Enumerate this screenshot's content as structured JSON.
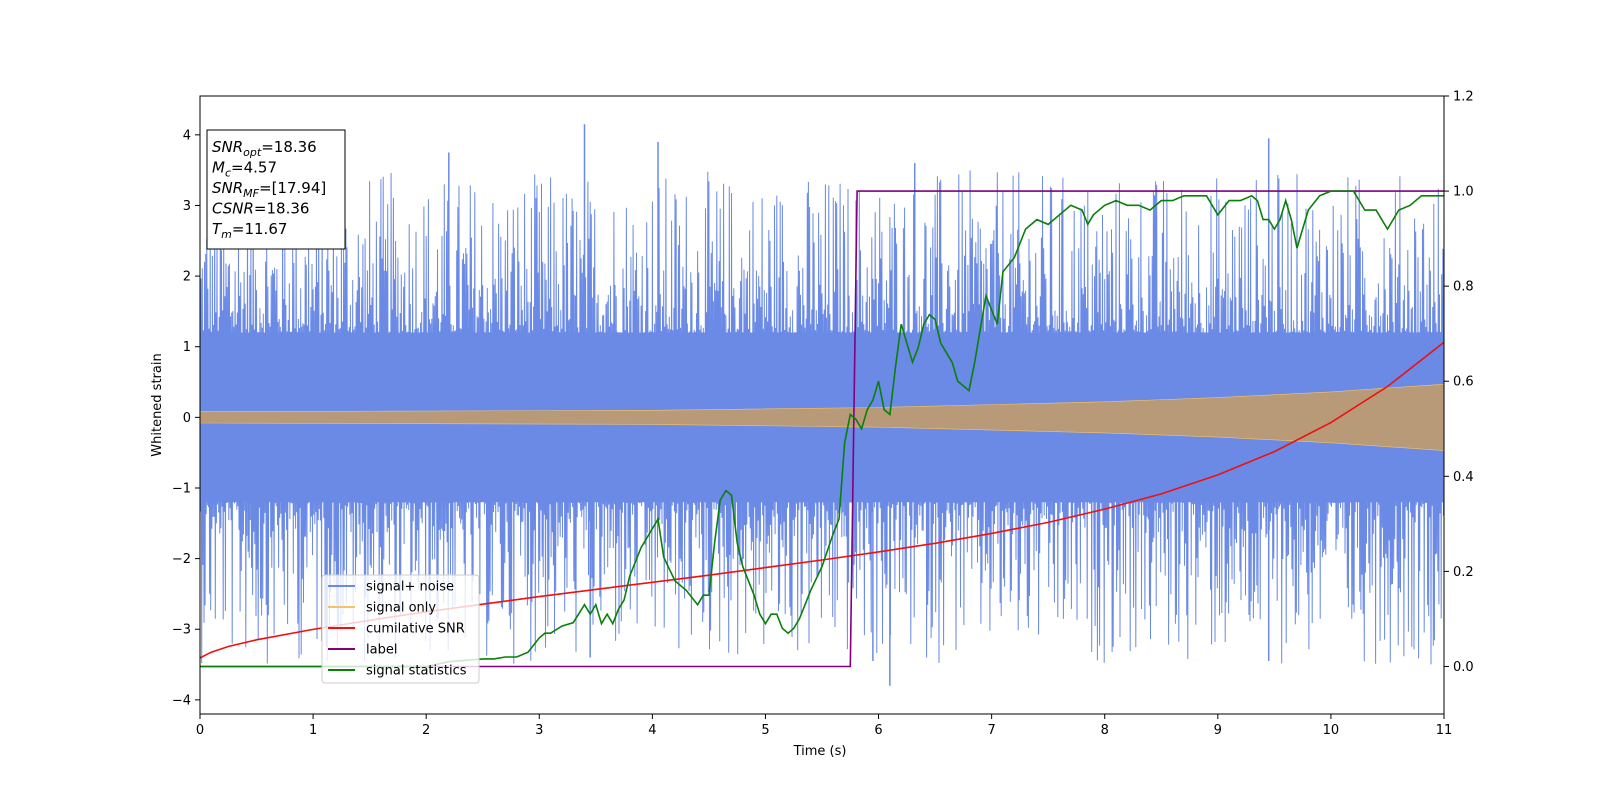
{
  "chart_data": {
    "type": "line",
    "title": "",
    "xlabel": "Time (s)",
    "ylabel": "Whitened strain",
    "y2label": "",
    "xlim": [
      0,
      11
    ],
    "ylim": [
      -4.2,
      4.55
    ],
    "y2lim": [
      -0.1,
      1.2
    ],
    "x_ticks": [
      0,
      1,
      2,
      3,
      4,
      5,
      6,
      7,
      8,
      9,
      10,
      11
    ],
    "y_ticks": [
      -4,
      -3,
      -2,
      -1,
      0,
      1,
      2,
      3,
      4
    ],
    "y2_ticks": [
      "0.0",
      "0.2",
      "0.4",
      "0.6",
      "0.8",
      "1.0",
      "1.2"
    ],
    "grid": false,
    "legend_position": "lower-left",
    "colors": {
      "signal_noise": "#6a8ae6",
      "signal_only": "#f5c36a",
      "signal_overlap": "#b89a78",
      "cumulative_snr": "#ee1111",
      "label": "#800080",
      "signal_statistics": "#0b7f0b"
    },
    "series": [
      {
        "name": "signal+ noise",
        "axis": "left",
        "description_values": {
          "envelope_inner": [
            [
              0,
              1.2
            ],
            [
              11,
              1.2
            ]
          ],
          "peak_maxima": [
            [
              3.4,
              4.15
            ],
            [
              9.45,
              3.95
            ],
            [
              6.32,
              3.6
            ],
            [
              4.05,
              3.9
            ],
            [
              2.2,
              3.75
            ]
          ],
          "peak_minima": [
            [
              6.1,
              -3.8
            ],
            [
              9.45,
              -3.45
            ],
            [
              3.45,
              -3.4
            ],
            [
              5.95,
              -3.45
            ]
          ]
        }
      },
      {
        "name": "signal only",
        "axis": "left",
        "envelope": [
          [
            0,
            0.08
          ],
          [
            2,
            0.09
          ],
          [
            4,
            0.1
          ],
          [
            6,
            0.14
          ],
          [
            8,
            0.22
          ],
          [
            9,
            0.28
          ],
          [
            10,
            0.36
          ],
          [
            11,
            0.47
          ]
        ]
      },
      {
        "name": "cumilative SNR",
        "axis": "right",
        "x": [
          0,
          0.1,
          0.25,
          0.5,
          1,
          1.5,
          2,
          2.5,
          3,
          3.5,
          4,
          4.5,
          5,
          5.5,
          6,
          6.5,
          7,
          7.5,
          8,
          8.5,
          9,
          9.5,
          10,
          10.5,
          11
        ],
        "values": [
          0.018,
          0.03,
          0.042,
          0.056,
          0.078,
          0.097,
          0.115,
          0.131,
          0.147,
          0.162,
          0.177,
          0.192,
          0.208,
          0.224,
          0.241,
          0.259,
          0.28,
          0.303,
          0.331,
          0.363,
          0.403,
          0.452,
          0.513,
          0.589,
          0.682
        ]
      },
      {
        "name": "label",
        "axis": "right",
        "x": [
          0,
          5.75,
          5.81,
          11
        ],
        "values": [
          0,
          0,
          1,
          1
        ]
      },
      {
        "name": "signal statistics",
        "axis": "right",
        "x": [
          0,
          2.0,
          2.2,
          2.5,
          2.6,
          2.7,
          2.8,
          2.9,
          3.0,
          3.05,
          3.1,
          3.2,
          3.3,
          3.4,
          3.45,
          3.5,
          3.55,
          3.6,
          3.65,
          3.7,
          3.75,
          3.8,
          3.9,
          4.0,
          4.05,
          4.1,
          4.2,
          4.3,
          4.4,
          4.45,
          4.5,
          4.55,
          4.6,
          4.65,
          4.7,
          4.75,
          4.8,
          4.9,
          4.95,
          5.0,
          5.05,
          5.1,
          5.15,
          5.2,
          5.25,
          5.3,
          5.4,
          5.5,
          5.6,
          5.65,
          5.7,
          5.75,
          5.8,
          5.85,
          5.9,
          5.95,
          6.0,
          6.05,
          6.1,
          6.15,
          6.2,
          6.3,
          6.35,
          6.4,
          6.45,
          6.5,
          6.55,
          6.65,
          6.7,
          6.75,
          6.8,
          6.85,
          6.9,
          6.95,
          7.0,
          7.05,
          7.1,
          7.2,
          7.3,
          7.4,
          7.5,
          7.6,
          7.7,
          7.8,
          7.85,
          7.9,
          8.0,
          8.1,
          8.2,
          8.3,
          8.4,
          8.5,
          8.6,
          8.7,
          8.8,
          8.9,
          9.0,
          9.1,
          9.2,
          9.3,
          9.35,
          9.4,
          9.45,
          9.5,
          9.55,
          9.6,
          9.65,
          9.7,
          9.75,
          9.8,
          9.9,
          10.0,
          10.1,
          10.2,
          10.3,
          10.4,
          10.5,
          10.6,
          10.7,
          10.8,
          10.9,
          11.0
        ],
        "values": [
          0.0,
          0.0,
          0.01,
          0.016,
          0.016,
          0.02,
          0.02,
          0.03,
          0.06,
          0.07,
          0.07,
          0.085,
          0.092,
          0.13,
          0.11,
          0.13,
          0.09,
          0.11,
          0.09,
          0.12,
          0.14,
          0.19,
          0.25,
          0.29,
          0.31,
          0.23,
          0.18,
          0.16,
          0.13,
          0.15,
          0.15,
          0.26,
          0.35,
          0.37,
          0.36,
          0.26,
          0.21,
          0.15,
          0.11,
          0.09,
          0.11,
          0.11,
          0.08,
          0.07,
          0.08,
          0.1,
          0.16,
          0.21,
          0.28,
          0.31,
          0.47,
          0.53,
          0.52,
          0.5,
          0.54,
          0.56,
          0.6,
          0.54,
          0.53,
          0.63,
          0.72,
          0.64,
          0.67,
          0.72,
          0.74,
          0.73,
          0.68,
          0.64,
          0.6,
          0.59,
          0.58,
          0.64,
          0.71,
          0.78,
          0.75,
          0.72,
          0.83,
          0.86,
          0.92,
          0.94,
          0.93,
          0.95,
          0.97,
          0.96,
          0.93,
          0.95,
          0.97,
          0.98,
          0.97,
          0.97,
          0.96,
          0.98,
          0.98,
          0.99,
          0.99,
          0.99,
          0.95,
          0.98,
          0.98,
          0.99,
          0.98,
          0.94,
          0.94,
          0.92,
          0.94,
          0.98,
          0.94,
          0.88,
          0.92,
          0.96,
          0.99,
          1.0,
          1.0,
          1.0,
          0.96,
          0.96,
          0.92,
          0.96,
          0.97,
          0.99,
          0.99,
          0.99
        ]
      }
    ],
    "legend": [
      "signal+ noise",
      "signal only",
      "cumilative SNR",
      "label",
      "signal statistics"
    ],
    "annotation_box": [
      {
        "base": "SNR",
        "sub": "opt",
        "rest": "=18.36"
      },
      {
        "base": "M",
        "sub": "c",
        "rest": "=4.57"
      },
      {
        "base": "SNR",
        "sub": "MF",
        "rest": "=[17.94]"
      },
      {
        "base": "CSNR",
        "sub": "",
        "rest": "=18.36"
      },
      {
        "base": "T",
        "sub": "m",
        "rest": "=11.67"
      }
    ]
  }
}
